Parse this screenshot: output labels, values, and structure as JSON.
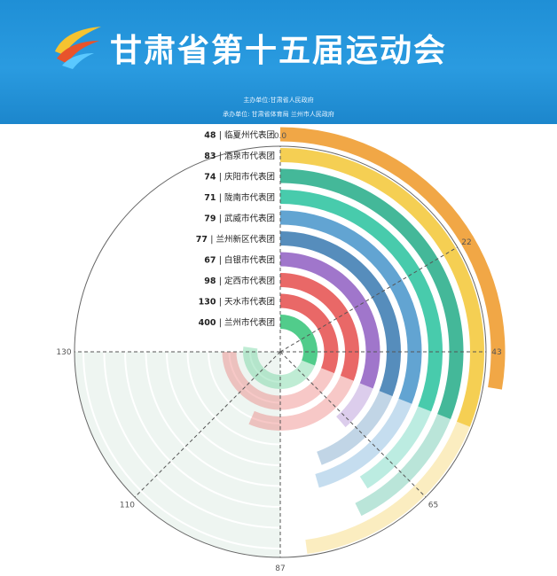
{
  "header": {
    "title": "甘肃省第十五届运动会",
    "host": "主办单位:甘肃省人民政府",
    "organizer": "承办单位: 甘肃省体育局  兰州市人民政府"
  },
  "chart_data": {
    "type": "bar",
    "subtype": "radial-polar-bar",
    "categories": [
      "临夏州代表团",
      "酒泉市代表团",
      "庆阳市代表团",
      "陇南市代表团",
      "武威市代表团",
      "兰州新区代表团",
      "白银市代表团",
      "定西市代表团",
      "天水市代表团",
      "兰州市代表团"
    ],
    "values": [
      48,
      83,
      74,
      71,
      79,
      77,
      67,
      98,
      130,
      400
    ],
    "angle_axis": {
      "ticks": [
        "0.0",
        "22",
        "43",
        "65",
        "87",
        "110",
        "130"
      ],
      "max": 130
    },
    "colors": [
      "#f0a23c",
      "#f4cc4a",
      "#3ab493",
      "#3ec8a8",
      "#5a9fd0",
      "#4d87b8",
      "#9b6fc8",
      "#e8605f",
      "#e8605f",
      "#48c985"
    ]
  }
}
